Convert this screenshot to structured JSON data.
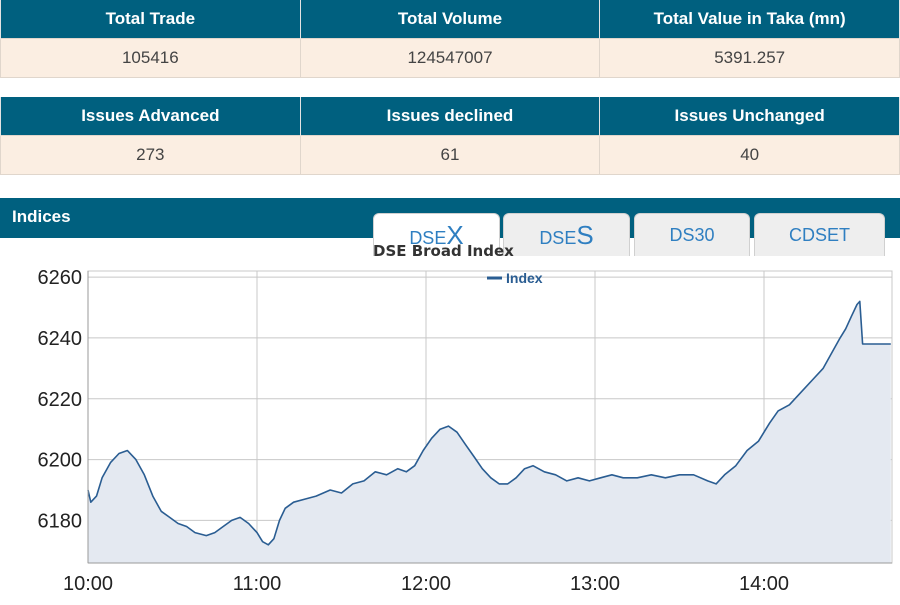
{
  "summary_1": {
    "headers": [
      "Total Trade",
      "Total Volume",
      "Total Value in Taka (mn)"
    ],
    "values": [
      "105416",
      "124547007",
      "5391.257"
    ]
  },
  "summary_2": {
    "headers": [
      "Issues Advanced",
      "Issues declined",
      "Issues Unchanged"
    ],
    "values": [
      "273",
      "61",
      "40"
    ]
  },
  "indices": {
    "title": "Indices",
    "tabs": [
      {
        "prefix": "DSE",
        "big": "X",
        "active": true
      },
      {
        "prefix": "DSE",
        "big": "S",
        "active": false
      },
      {
        "prefix": "DS30",
        "big": "",
        "active": false
      },
      {
        "prefix": "CDSET",
        "big": "",
        "active": false
      }
    ]
  },
  "colors": {
    "header_bg": "#00607f",
    "cell_bg": "#fbeee2",
    "line": "#2a5d92",
    "fill": "#e4e9f1",
    "tab_text": "#2f7fc1"
  },
  "chart_data": {
    "type": "area",
    "title": "DSE Broad Index",
    "xlabel": "",
    "ylabel": "",
    "legend": {
      "entries": [
        "Index"
      ],
      "position": "top-center"
    },
    "grid": true,
    "x_tick_labels": [
      "10:00",
      "11:00",
      "12:00",
      "13:00",
      "14:00"
    ],
    "y_tick_labels": [
      "6180",
      "6200",
      "6220",
      "6240",
      "6260"
    ],
    "x_range": [
      "10:00",
      "14:45"
    ],
    "ylim": [
      6166,
      6262
    ],
    "series": [
      {
        "name": "Index",
        "points": [
          [
            "10:00",
            6190
          ],
          [
            "10:01",
            6186
          ],
          [
            "10:03",
            6188
          ],
          [
            "10:05",
            6194
          ],
          [
            "10:08",
            6199
          ],
          [
            "10:11",
            6202
          ],
          [
            "10:14",
            6203
          ],
          [
            "10:17",
            6200
          ],
          [
            "10:20",
            6195
          ],
          [
            "10:23",
            6188
          ],
          [
            "10:26",
            6183
          ],
          [
            "10:29",
            6181
          ],
          [
            "10:32",
            6179
          ],
          [
            "10:35",
            6178
          ],
          [
            "10:38",
            6176
          ],
          [
            "10:42",
            6175
          ],
          [
            "10:45",
            6176
          ],
          [
            "10:48",
            6178
          ],
          [
            "10:51",
            6180
          ],
          [
            "10:54",
            6181
          ],
          [
            "10:57",
            6179
          ],
          [
            "11:00",
            6176
          ],
          [
            "11:02",
            6173
          ],
          [
            "11:04",
            6172
          ],
          [
            "11:06",
            6174
          ],
          [
            "11:08",
            6180
          ],
          [
            "11:10",
            6184
          ],
          [
            "11:13",
            6186
          ],
          [
            "11:17",
            6187
          ],
          [
            "11:21",
            6188
          ],
          [
            "11:26",
            6190
          ],
          [
            "11:30",
            6189
          ],
          [
            "11:34",
            6192
          ],
          [
            "11:38",
            6193
          ],
          [
            "11:42",
            6196
          ],
          [
            "11:46",
            6195
          ],
          [
            "11:50",
            6197
          ],
          [
            "11:53",
            6196
          ],
          [
            "11:56",
            6198
          ],
          [
            "11:59",
            6203
          ],
          [
            "12:02",
            6207
          ],
          [
            "12:05",
            6210
          ],
          [
            "12:08",
            6211
          ],
          [
            "12:11",
            6209
          ],
          [
            "12:14",
            6205
          ],
          [
            "12:17",
            6201
          ],
          [
            "12:20",
            6197
          ],
          [
            "12:23",
            6194
          ],
          [
            "12:26",
            6192
          ],
          [
            "12:29",
            6192
          ],
          [
            "12:32",
            6194
          ],
          [
            "12:35",
            6197
          ],
          [
            "12:38",
            6198
          ],
          [
            "12:42",
            6196
          ],
          [
            "12:46",
            6195
          ],
          [
            "12:50",
            6193
          ],
          [
            "12:54",
            6194
          ],
          [
            "12:58",
            6193
          ],
          [
            "13:02",
            6194
          ],
          [
            "13:06",
            6195
          ],
          [
            "13:10",
            6194
          ],
          [
            "13:15",
            6194
          ],
          [
            "13:20",
            6195
          ],
          [
            "13:25",
            6194
          ],
          [
            "13:30",
            6195
          ],
          [
            "13:35",
            6195
          ],
          [
            "13:40",
            6193
          ],
          [
            "13:43",
            6192
          ],
          [
            "13:46",
            6195
          ],
          [
            "13:50",
            6198
          ],
          [
            "13:54",
            6203
          ],
          [
            "13:58",
            6206
          ],
          [
            "14:02",
            6212
          ],
          [
            "14:05",
            6216
          ],
          [
            "14:09",
            6218
          ],
          [
            "14:13",
            6222
          ],
          [
            "14:17",
            6226
          ],
          [
            "14:21",
            6230
          ],
          [
            "14:24",
            6235
          ],
          [
            "14:27",
            6240
          ],
          [
            "14:29",
            6243
          ],
          [
            "14:31",
            6247
          ],
          [
            "14:33",
            6251
          ],
          [
            "14:34",
            6252
          ],
          [
            "14:35",
            6238
          ],
          [
            "14:45",
            6238
          ]
        ]
      }
    ]
  }
}
